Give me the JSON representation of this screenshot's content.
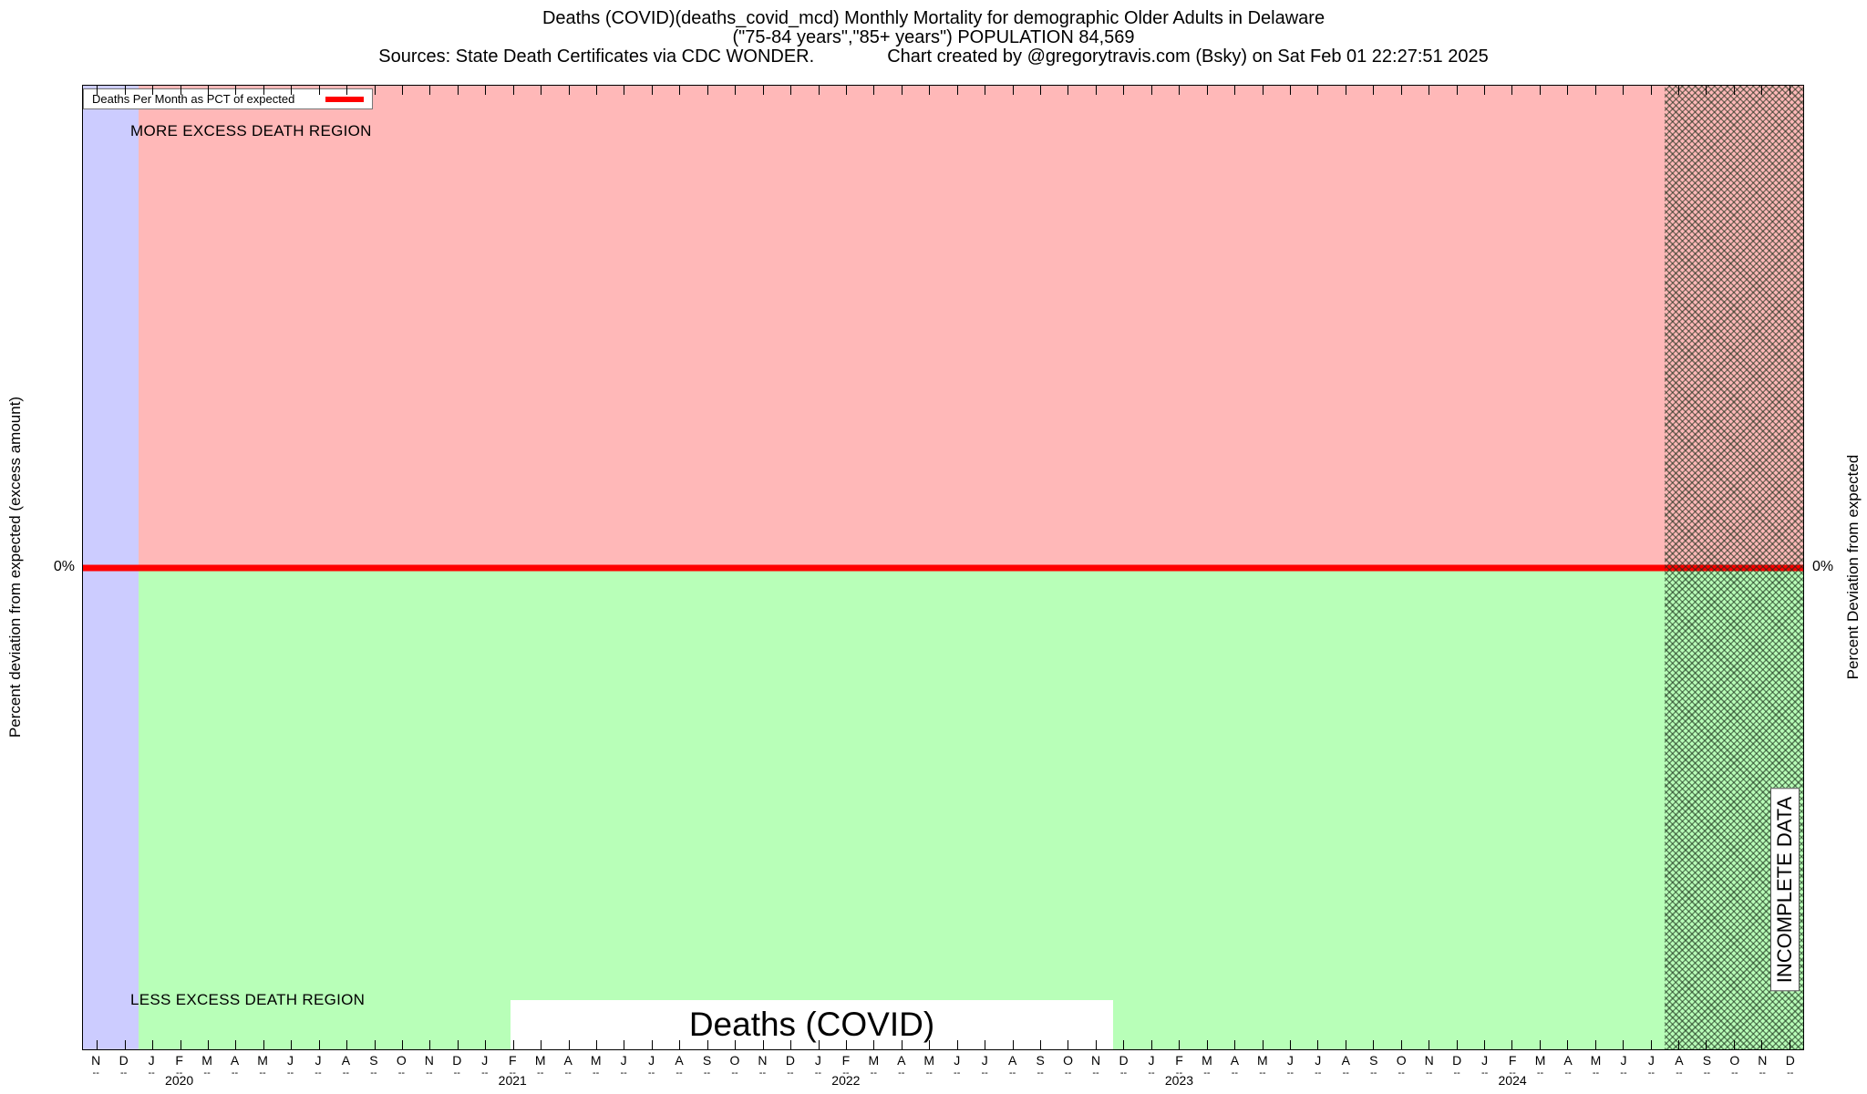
{
  "header": {
    "line1": "Deaths (COVID)(deaths_covid_mcd) Monthly Mortality for demographic Older Adults in Delaware",
    "line2": "(\"75-84 years\",\"85+ years\") POPULATION 84,569",
    "sources": "Sources: State Death Certificates via CDC WONDER.",
    "credit": "Chart created by @gregorytravis.com (Bsky) on Sat Feb 01 22:27:51 2025"
  },
  "legend": {
    "label": "Deaths Per Month as PCT of expected"
  },
  "axes": {
    "left_label": "Percent deviation from expected (excess amount)",
    "right_label": "Percent Deviation from expected",
    "zero_left": "0%",
    "zero_right": "0%"
  },
  "annotations": {
    "more_region": "MORE EXCESS DEATH REGION",
    "less_region": "LESS EXCESS DEATH REGION",
    "incomplete": "INCOMPLETE DATA",
    "bottom_title": "Deaths (COVID)"
  },
  "colors": {
    "more_region_bg": "#ffb8b8",
    "less_region_bg": "#b8ffb8",
    "no_data_band": "#ccccff",
    "line": "#ff0000"
  },
  "x_axis": {
    "sub_marker": "--",
    "year_positions": {
      "3": "2020",
      "15": "2021",
      "27": "2022",
      "39": "2023",
      "51": "2024"
    }
  },
  "chart_data": {
    "type": "line",
    "title": "Deaths (COVID)",
    "x_start": "Nov 2019",
    "x_end": "Dec 2024",
    "x": [
      "N",
      "D",
      "J",
      "F",
      "M",
      "A",
      "M",
      "J",
      "J",
      "A",
      "S",
      "O",
      "N",
      "D",
      "J",
      "F",
      "M",
      "A",
      "M",
      "J",
      "J",
      "A",
      "S",
      "O",
      "N",
      "D",
      "J",
      "F",
      "M",
      "A",
      "M",
      "J",
      "J",
      "A",
      "S",
      "O",
      "N",
      "D",
      "J",
      "F",
      "M",
      "A",
      "M",
      "J",
      "J",
      "A",
      "S",
      "O",
      "N",
      "D",
      "J",
      "F",
      "M",
      "A",
      "M",
      "J",
      "J",
      "A",
      "S",
      "O",
      "N",
      "D"
    ],
    "series": [
      {
        "name": "Deaths Per Month as PCT of expected",
        "color": "#ff0000",
        "unit": "percent deviation from expected",
        "values": [
          0,
          0,
          0,
          0,
          0,
          0,
          0,
          0,
          0,
          0,
          0,
          0,
          0,
          0,
          0,
          0,
          0,
          0,
          0,
          0,
          0,
          0,
          0,
          0,
          0,
          0,
          0,
          0,
          0,
          0,
          0,
          0,
          0,
          0,
          0,
          0,
          0,
          0,
          0,
          0,
          0,
          0,
          0,
          0,
          0,
          0,
          0,
          0,
          0,
          0,
          0,
          0,
          0,
          0,
          0,
          0,
          0,
          0,
          0,
          0,
          0,
          0
        ]
      }
    ],
    "ylabel": "Percent deviation from expected (excess amount)",
    "y2label": "Percent Deviation from expected",
    "y_ticks": [
      "0%"
    ],
    "grid": false,
    "legend_position": "top-left",
    "regions": {
      "above_zero_label": "MORE EXCESS DEATH REGION",
      "below_zero_label": "LESS EXCESS DEATH REGION",
      "no_data_months": 2,
      "incomplete_start_index": 57,
      "incomplete_label": "INCOMPLETE DATA"
    }
  }
}
